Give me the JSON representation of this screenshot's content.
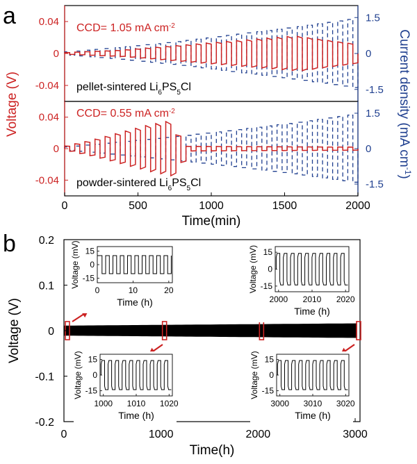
{
  "panel_labels": [
    "a",
    "b"
  ],
  "colors": {
    "voltage": "#cc2222",
    "current": "#1f3f8f",
    "trace": "#000000",
    "highlight": "#cc2222"
  },
  "chart_data": [
    {
      "id": "a",
      "type": "line",
      "xlabel": "Time(min)",
      "ylabel_left": "Voltage (V)",
      "ylabel_right": "Current density (mA cm",
      "ylabel_right_sup": "-1",
      "ylabel_right_close": ")",
      "x_ticks": [
        "0",
        "500",
        "1000",
        "1500",
        "2000"
      ],
      "xlim": [
        0,
        2000
      ],
      "subplots": [
        {
          "ylim_voltage": [
            -0.06,
            0.06
          ],
          "ylim_current": [
            -2.0,
            2.0
          ],
          "y_ticks_left": [
            "0.04",
            "0",
            "-0.04"
          ],
          "y_ticks_right": [
            "1.5",
            "0",
            "-1.5"
          ],
          "ccd_prefix": "CCD= 1.05 mA cm",
          "ccd_sup": "-2",
          "sample_prefix": "pellet-sintered Li",
          "sample_sub1": "6",
          "sample_mid": "PS",
          "sample_sub2": "5",
          "sample_suffix": "Cl",
          "series": [
            {
              "name": "Voltage",
              "axis": "left",
              "style": "solid",
              "points": [
                [
                  0,
                  0.001
                ],
                [
                  400,
                  0.004
                ],
                [
                  800,
                  0.01
                ],
                [
                  1200,
                  0.016
                ],
                [
                  1600,
                  0.022
                ],
                [
                  2000,
                  0.012
                ]
              ]
            },
            {
              "name": "Current density",
              "axis": "right",
              "style": "dashed",
              "points": [
                [
                  0,
                  0.05
                ],
                [
                  400,
                  0.25
                ],
                [
                  800,
                  0.5
                ],
                [
                  1200,
                  0.8
                ],
                [
                  1600,
                  1.1
                ],
                [
                  2000,
                  1.45
                ]
              ]
            }
          ]
        },
        {
          "ylim_voltage": [
            -0.06,
            0.06
          ],
          "ylim_current": [
            -2.0,
            2.0
          ],
          "y_ticks_left": [
            "0.04",
            "0",
            "-0.04"
          ],
          "y_ticks_right": [
            "1.5",
            "0",
            "-1.5"
          ],
          "ccd_prefix": "CCD= 0.55 mA cm",
          "ccd_sup": "-2",
          "sample_prefix": "powder-sintered Li",
          "sample_sub1": "6",
          "sample_mid": "PS",
          "sample_sub2": "5",
          "sample_suffix": "Cl",
          "series": [
            {
              "name": "Voltage",
              "axis": "left",
              "style": "solid",
              "points": [
                [
                  0,
                  0.002
                ],
                [
                  200,
                  0.01
                ],
                [
                  400,
                  0.02
                ],
                [
                  600,
                  0.03
                ],
                [
                  770,
                  0.036
                ],
                [
                  800,
                  0.012
                ],
                [
                  850,
                  0.003
                ],
                [
                  2000,
                  0.002
                ]
              ]
            },
            {
              "name": "Current density",
              "axis": "right",
              "style": "dashed",
              "points": [
                [
                  0,
                  0.05
                ],
                [
                  400,
                  0.28
                ],
                [
                  800,
                  0.52
                ],
                [
                  1200,
                  0.8
                ],
                [
                  1600,
                  1.1
                ],
                [
                  2000,
                  1.45
                ]
              ]
            }
          ]
        }
      ]
    },
    {
      "id": "b",
      "type": "line",
      "xlabel": "Time(h)",
      "ylabel": "Voltage (V)",
      "xlim": [
        0,
        3050
      ],
      "ylim": [
        -0.2,
        0.2
      ],
      "x_ticks": [
        "0",
        "1000",
        "2000",
        "3000"
      ],
      "y_ticks": [
        "0.2",
        "0.1",
        "0",
        "-0.1",
        "-0.2"
      ],
      "band": {
        "start_half_amplitude": 0.011,
        "end_half_amplitude": 0.016
      },
      "highlighted_regions_h": [
        [
          0,
          20
        ],
        [
          1000,
          1020
        ],
        [
          2000,
          2020
        ],
        [
          3000,
          3020
        ]
      ],
      "insets": [
        {
          "xlabel": "Time (h)",
          "ylabel": "Voltage (mV)",
          "x_ticks": [
            "0",
            "10",
            "20"
          ],
          "xlim": [
            0,
            21
          ],
          "y_ticks": [
            "15",
            "0",
            "-15"
          ],
          "ylim": [
            -20,
            20
          ],
          "amplitude_mv": 10,
          "style": "square",
          "cycles": 10
        },
        {
          "xlabel": "Time (h)",
          "ylabel": "Voltage (mV)",
          "x_ticks": [
            "2000",
            "2010",
            "2020"
          ],
          "xlim": [
            1999,
            2021
          ],
          "y_ticks": [
            "15",
            "0",
            "-15"
          ],
          "ylim": [
            -20,
            20
          ],
          "amplitude_mv": 14,
          "style": "spike",
          "cycles": 10
        },
        {
          "xlabel": "Time (h)",
          "ylabel": "Voltage (mV)",
          "x_ticks": [
            "1000",
            "1010",
            "1020"
          ],
          "xlim": [
            999,
            1021
          ],
          "y_ticks": [
            "15",
            "0",
            "-15"
          ],
          "ylim": [
            -20,
            20
          ],
          "amplitude_mv": 14,
          "style": "spike",
          "cycles": 10
        },
        {
          "xlabel": "Time (h)",
          "ylabel": "Voltage (mV)",
          "x_ticks": [
            "3000",
            "3010",
            "3020"
          ],
          "xlim": [
            2999,
            3021
          ],
          "y_ticks": [
            "15",
            "0",
            "-15"
          ],
          "ylim": [
            -20,
            20
          ],
          "amplitude_mv": 14,
          "style": "spike",
          "cycles": 10
        }
      ]
    }
  ]
}
